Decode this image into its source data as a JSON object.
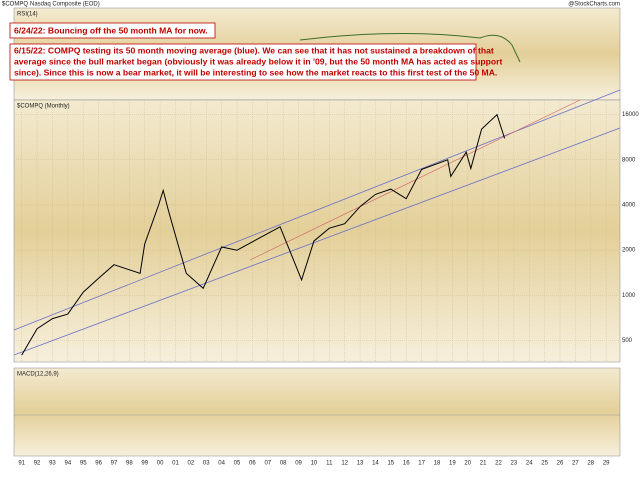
{
  "chart_data": {
    "type": "line",
    "title": "$COMPQ",
    "subtitle": "Nasdaq Composite (EOD)",
    "source": "@StockCharts.com",
    "legend_label": "$COMPQ (Monthly)",
    "rsi_label": "RSI(14)",
    "macd_label": "MACD(12,26,9)",
    "annotations": [
      "6/24/22:  Bouncing off the 50 month MA for now.",
      "6/15/22:  COMPQ testing its 50 month moving average (blue).  We can see that it has not sustained a breakdown of that",
      "average since the bull market began (obviously it was already below it in '09, but the 50 month MA has acted as support",
      "since).  Since this is now a bear market, it will be interesting to see how the market reacts to this first test of the 50 MA."
    ],
    "log_scale": true,
    "x": [
      1991,
      1992,
      1993,
      1994,
      1995,
      1996,
      1997,
      1998.7,
      1999,
      1999.9,
      2000.2,
      2000.5,
      2001,
      2001.7,
      2002.8,
      2004,
      2005,
      2007.8,
      2009.2,
      2010,
      2011,
      2012,
      2013,
      2014,
      2015,
      2016,
      2017,
      2018.7,
      2018.9,
      2019.9,
      2020.2,
      2020.9,
      2021.9,
      2022.4
    ],
    "series": [
      {
        "name": "$COMPQ",
        "color": "#000000",
        "values": [
          400,
          600,
          700,
          750,
          1050,
          1300,
          1600,
          1400,
          2200,
          4000,
          5000,
          3800,
          2500,
          1400,
          1114,
          2100,
          2000,
          2860,
          1268,
          2300,
          2800,
          3000,
          3900,
          4700,
          5100,
          4400,
          6900,
          8000,
          6200,
          9000,
          7000,
          12800,
          16000,
          11100
        ]
      }
    ],
    "xlim": [
      1990.5,
      2029.9
    ],
    "ylim": [
      360,
      20000
    ],
    "yticks": [
      500,
      1000,
      2000,
      4000,
      8000,
      16000
    ],
    "xticks": [
      {
        "value": 1991,
        "label": "91"
      },
      {
        "value": 1992,
        "label": "92"
      },
      {
        "value": 1993,
        "label": "93"
      },
      {
        "value": 1994,
        "label": "94"
      },
      {
        "value": 1995,
        "label": "95"
      },
      {
        "value": 1996,
        "label": "96"
      },
      {
        "value": 1997,
        "label": "97"
      },
      {
        "value": 1998,
        "label": "98"
      },
      {
        "value": 1999,
        "label": "99"
      },
      {
        "value": 2000,
        "label": "00"
      },
      {
        "value": 2001,
        "label": "01"
      },
      {
        "value": 2002,
        "label": "02"
      },
      {
        "value": 2003,
        "label": "03"
      },
      {
        "value": 2004,
        "label": "04"
      },
      {
        "value": 2005,
        "label": "05"
      },
      {
        "value": 2006,
        "label": "06"
      },
      {
        "value": 2007,
        "label": "07"
      },
      {
        "value": 2008,
        "label": "08"
      },
      {
        "value": 2009,
        "label": "09"
      },
      {
        "value": 2010,
        "label": "10"
      },
      {
        "value": 2011,
        "label": "11"
      },
      {
        "value": 2012,
        "label": "12"
      },
      {
        "value": 2013,
        "label": "13"
      },
      {
        "value": 2014,
        "label": "14"
      },
      {
        "value": 2015,
        "label": "15"
      },
      {
        "value": 2016,
        "label": "16"
      },
      {
        "value": 2017,
        "label": "17"
      },
      {
        "value": 2018,
        "label": "18"
      },
      {
        "value": 2019,
        "label": "19"
      },
      {
        "value": 2020,
        "label": "20"
      },
      {
        "value": 2021,
        "label": "21"
      },
      {
        "value": 2022,
        "label": "22"
      },
      {
        "value": 2023,
        "label": "23"
      },
      {
        "value": 2024,
        "label": "24"
      },
      {
        "value": 2025,
        "label": "25"
      },
      {
        "value": 2026,
        "label": "26"
      },
      {
        "value": 2027,
        "label": "27"
      },
      {
        "value": 2028,
        "label": "28"
      },
      {
        "value": 2029,
        "label": "29"
      }
    ],
    "grid": true
  }
}
